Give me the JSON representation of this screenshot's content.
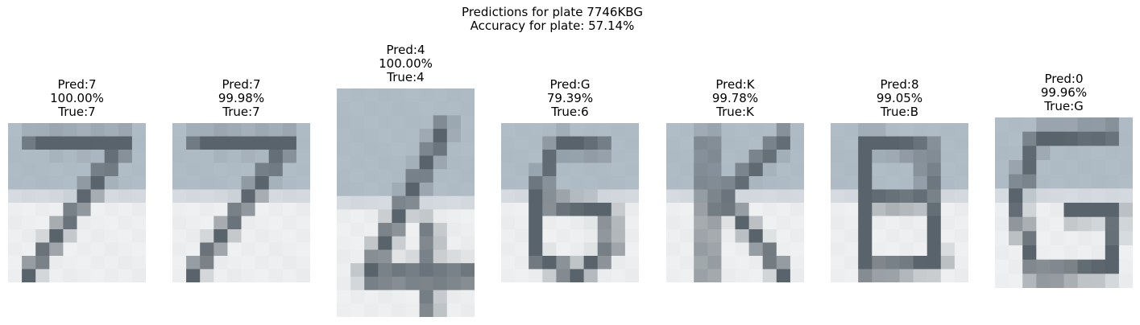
{
  "header": {
    "line1": "Predictions for plate 7746KBG",
    "line2": "Accuracy for plate: 57.14%"
  },
  "panels": [
    {
      "pred": "Pred:7",
      "conf": "100.00%",
      "true_label": "True:7",
      "glyph": "7"
    },
    {
      "pred": "Pred:7",
      "conf": "99.98%",
      "true_label": "True:7",
      "glyph": "7"
    },
    {
      "pred": "Pred:4",
      "conf": "100.00%",
      "true_label": "True:4",
      "glyph": "4"
    },
    {
      "pred": "Pred:G",
      "conf": "79.39%",
      "true_label": "True:6",
      "glyph": "6"
    },
    {
      "pred": "Pred:K",
      "conf": "99.78%",
      "true_label": "True:K",
      "glyph": "K"
    },
    {
      "pred": "Pred:8",
      "conf": "99.05%",
      "true_label": "True:B",
      "glyph": "B"
    },
    {
      "pred": "Pred:0",
      "conf": "99.96%",
      "true_label": "True:G",
      "glyph": "G"
    }
  ],
  "colors": {
    "plate_top": "#b0bcc6",
    "plate_bottom": "#eef0f1",
    "stroke": "#59636b"
  }
}
